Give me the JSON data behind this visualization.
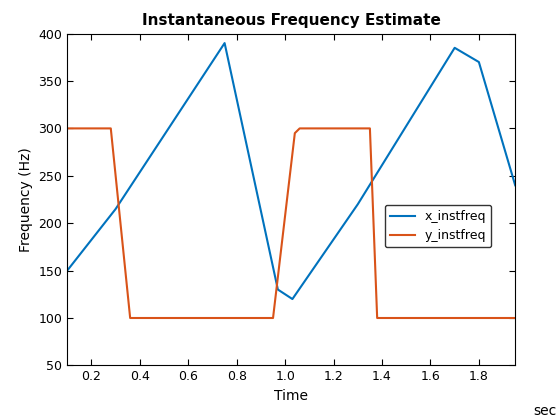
{
  "title": "Instantaneous Frequency Estimate",
  "xlabel": "Time",
  "ylabel": "Frequency (Hz)",
  "xlabel_right": "sec",
  "xlim": [
    0.1,
    1.95
  ],
  "ylim": [
    50,
    400
  ],
  "xticks": [
    0.2,
    0.4,
    0.6,
    0.8,
    1.0,
    1.2,
    1.4,
    1.6,
    1.8
  ],
  "yticks": [
    50,
    100,
    150,
    200,
    250,
    300,
    350,
    400
  ],
  "x_instfreq_x": [
    0.1,
    0.3,
    0.75,
    0.97,
    1.03,
    1.3,
    1.7,
    1.8,
    1.95
  ],
  "x_instfreq_y": [
    150,
    215,
    390,
    130,
    120,
    220,
    385,
    370,
    240
  ],
  "y_instfreq_x": [
    0.1,
    0.27,
    0.28,
    0.36,
    0.95,
    1.04,
    1.06,
    1.35,
    1.38,
    1.95
  ],
  "y_instfreq_y": [
    300,
    300,
    300,
    100,
    100,
    295,
    300,
    300,
    100,
    100
  ],
  "color_x": "#0072BD",
  "color_y": "#D95319",
  "linewidth": 1.5,
  "background_color": "#ffffff",
  "title_fontsize": 11,
  "label_fontsize": 10,
  "tick_fontsize": 9
}
